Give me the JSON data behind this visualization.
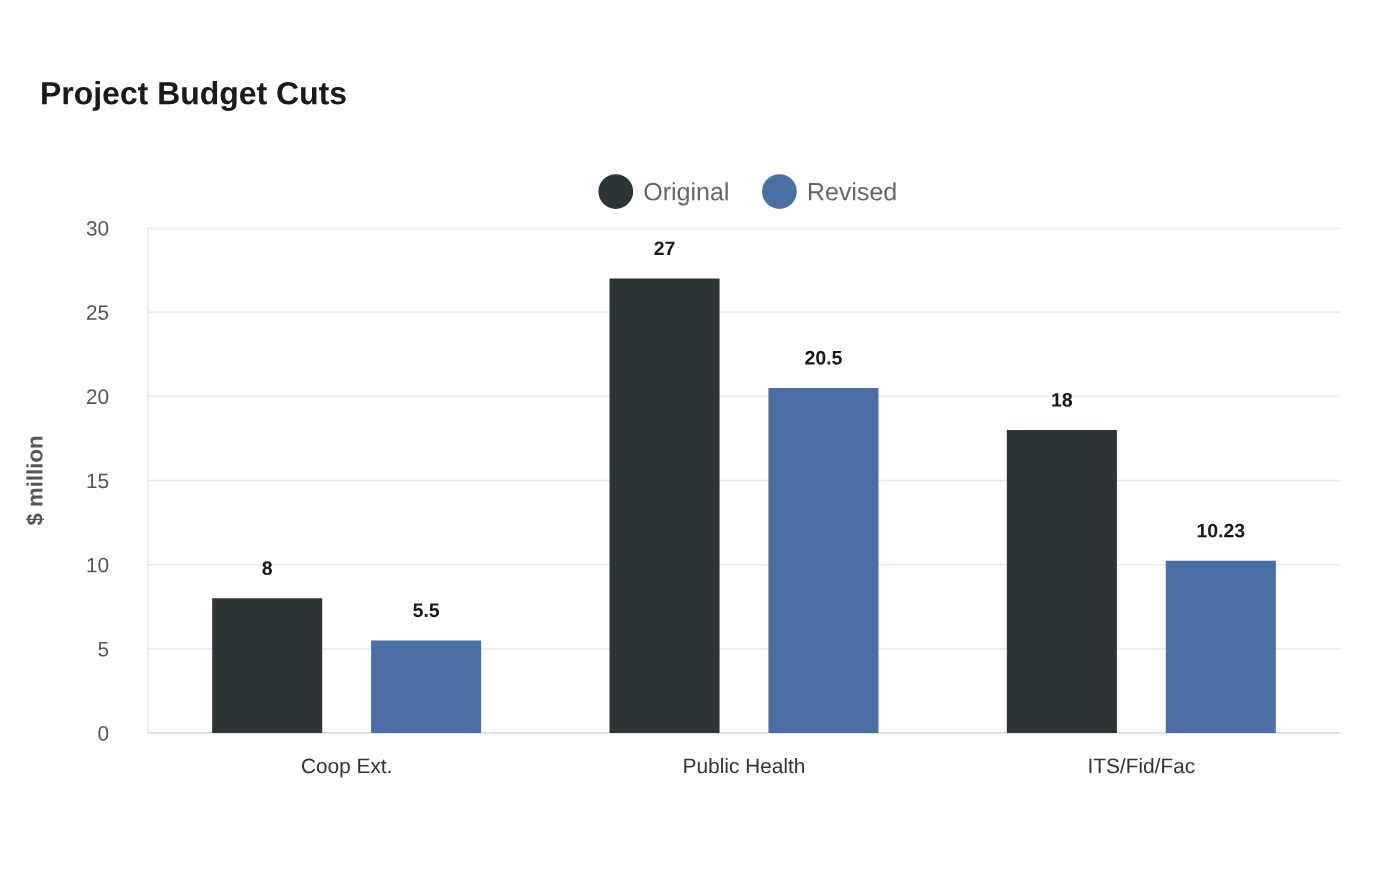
{
  "chart_data": {
    "type": "bar",
    "title": "Project Budget Cuts",
    "ylabel": "$ million",
    "categories": [
      "Coop Ext.",
      "Public Health",
      "ITS/Fid/Fac"
    ],
    "series": [
      {
        "name": "Original",
        "color": "#2d3436",
        "values": [
          8,
          27,
          18
        ]
      },
      {
        "name": "Revised",
        "color": "#4a6fa5",
        "values": [
          5.5,
          20.5,
          10.23
        ]
      }
    ],
    "ylim": [
      0,
      30
    ],
    "yticks": [
      0,
      5,
      10,
      15,
      20,
      25,
      30
    ],
    "grid": "y",
    "legend": "top",
    "data_labels": true
  }
}
